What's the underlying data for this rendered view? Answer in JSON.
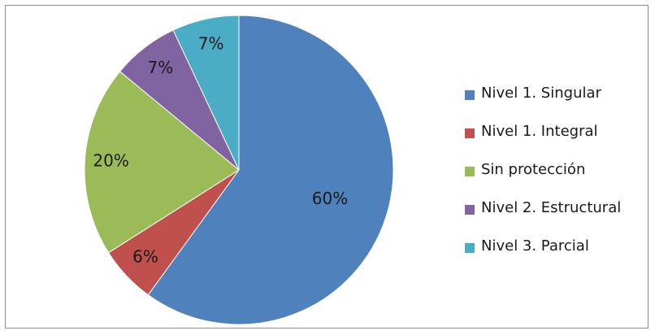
{
  "chart_data": {
    "type": "pie",
    "title": "",
    "legend_position": "right",
    "start_angle_deg": 0,
    "direction": "clockwise",
    "slices": [
      {
        "name": "Nivel 1. Singular",
        "value": 60,
        "label": "60%",
        "color": "#4f81bd"
      },
      {
        "name": "Nivel 1. Integral",
        "value": 6,
        "label": "6%",
        "color": "#c0504d"
      },
      {
        "name": "Sin protección",
        "value": 20,
        "label": "20%",
        "color": "#9bbb59"
      },
      {
        "name": "Nivel 2. Estructural",
        "value": 7,
        "label": "7%",
        "color": "#8064a2"
      },
      {
        "name": "Nivel 3. Parcial",
        "value": 7,
        "label": "7%",
        "color": "#4bacc6"
      }
    ]
  }
}
